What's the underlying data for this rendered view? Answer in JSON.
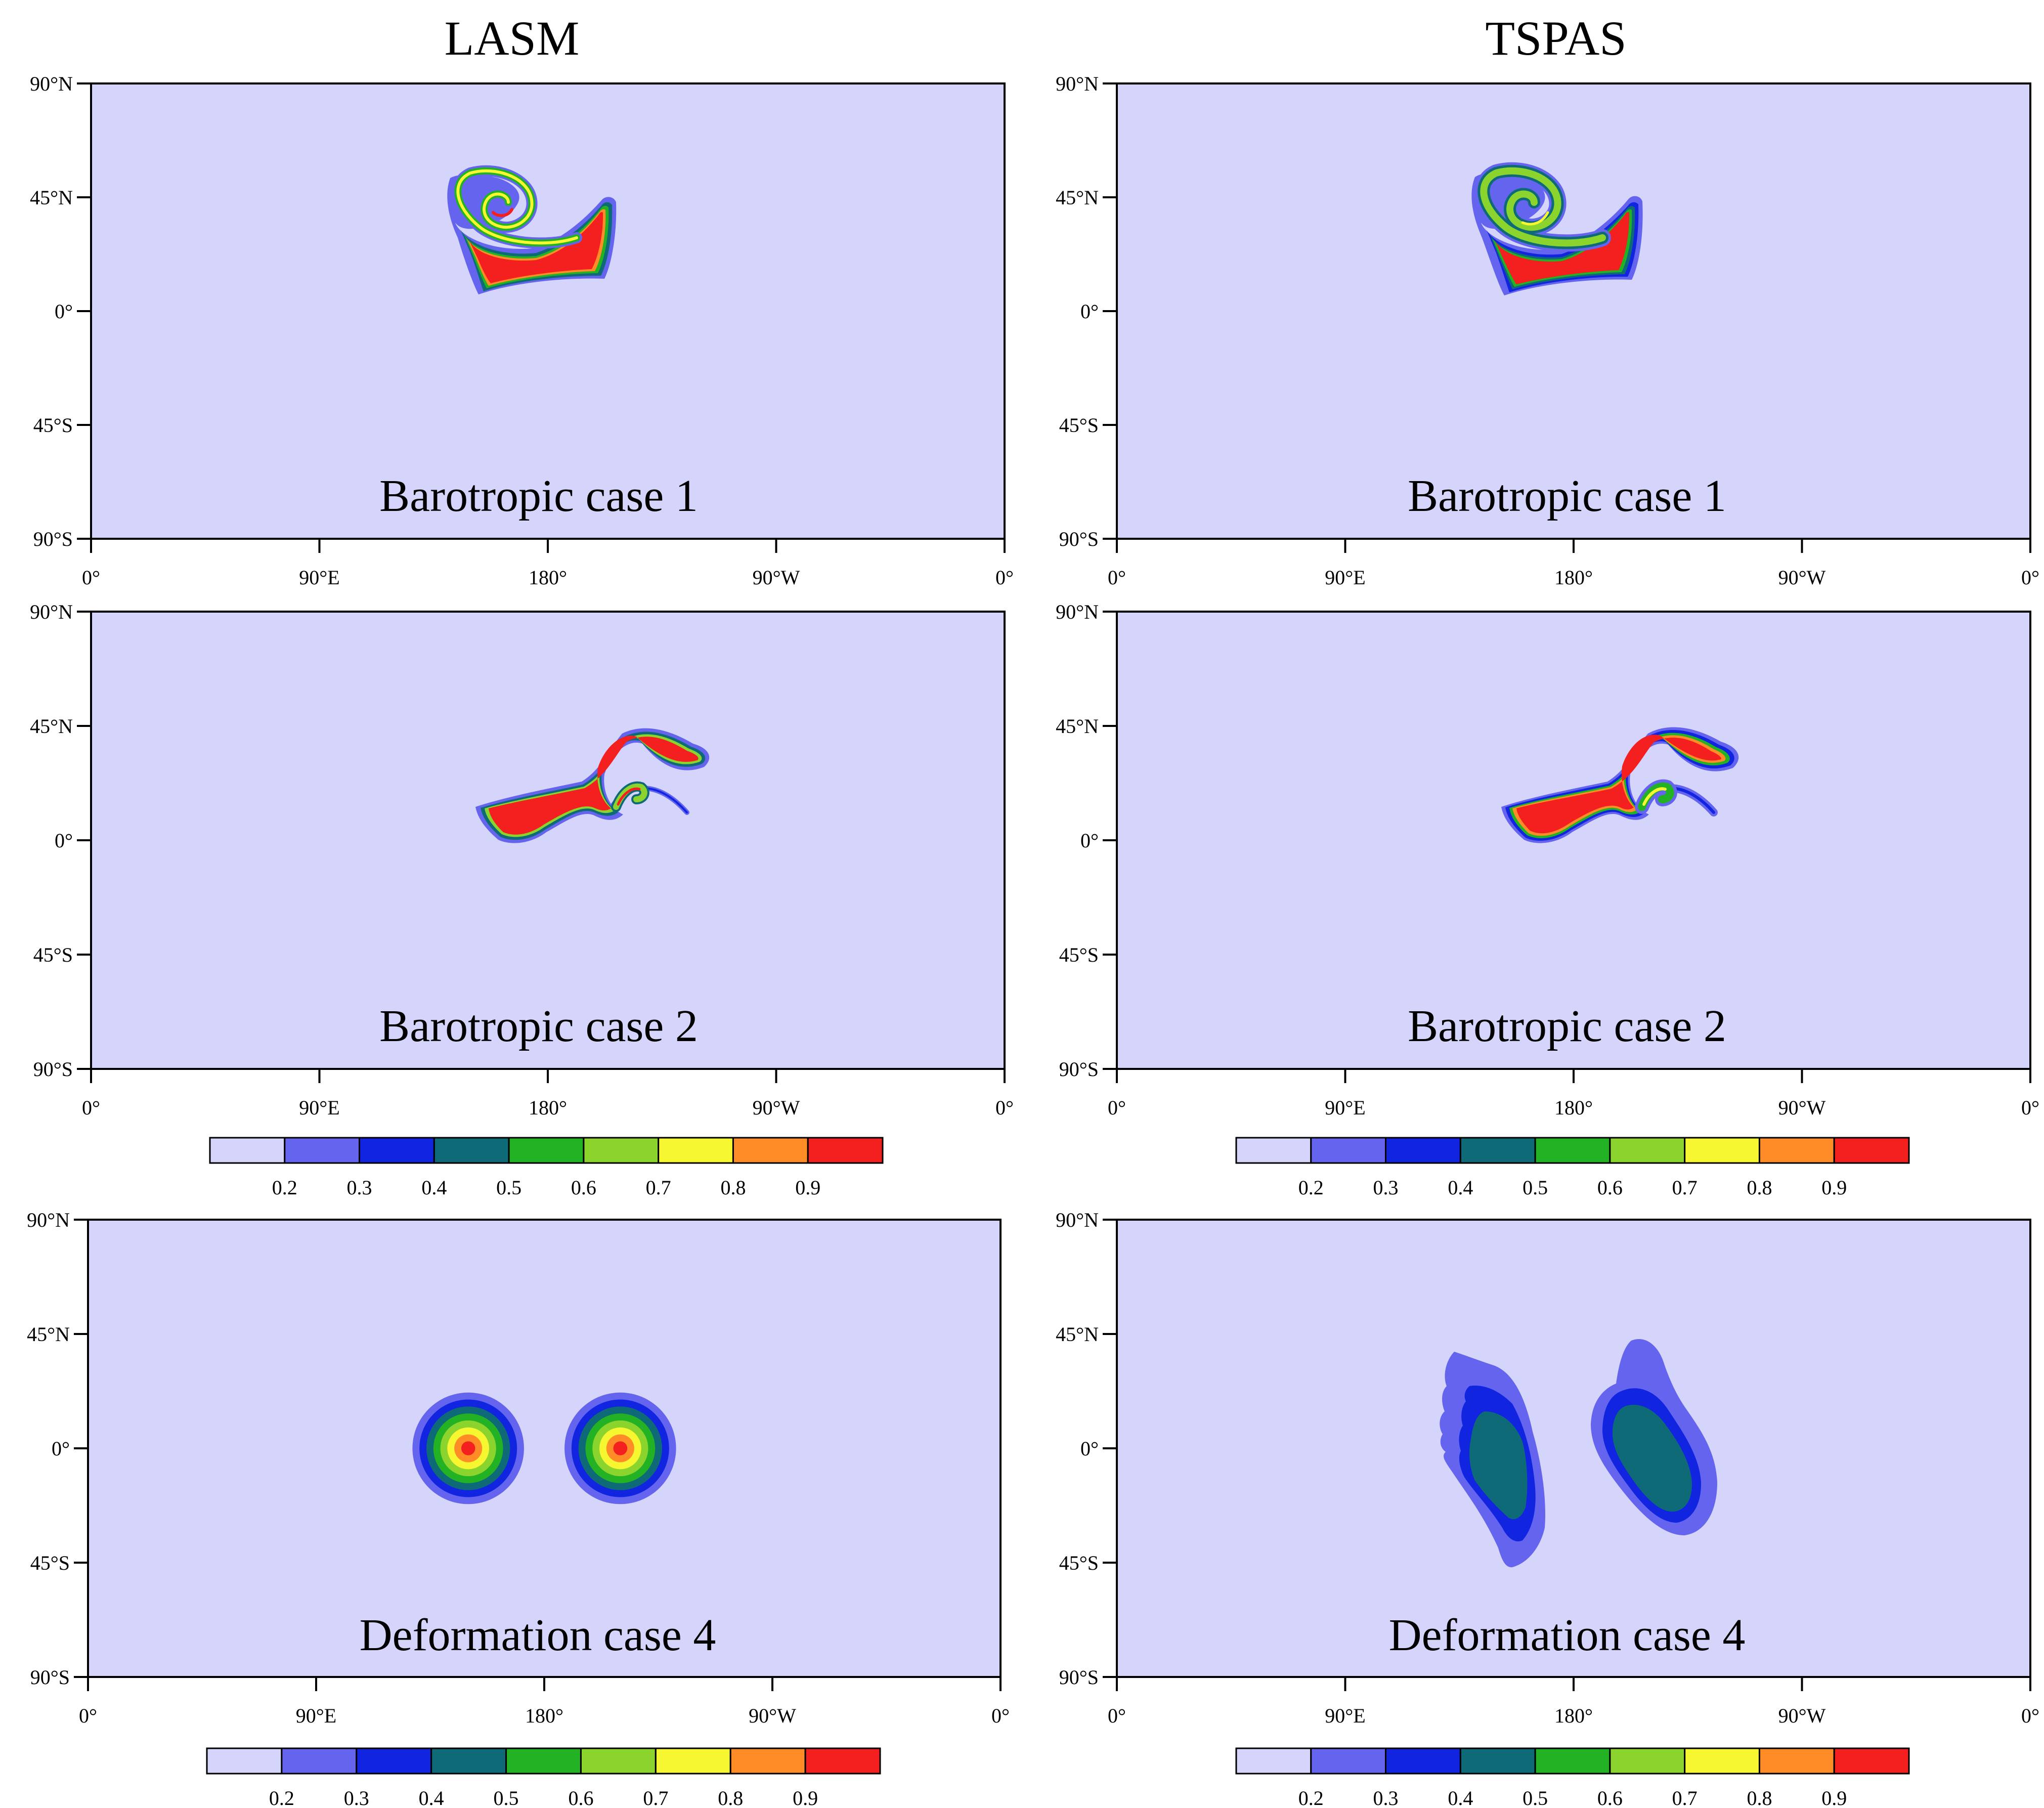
{
  "figure": {
    "columns": [
      "LASM",
      "TSPAS"
    ]
  },
  "palette": [
    "#d5d5fb",
    "#6464ef",
    "#1125e0",
    "#0f6a77",
    "#23b223",
    "#8ad42d",
    "#f6f631",
    "#ff8c26",
    "#f41f1f"
  ],
  "colorbar_ticks": [
    "0.2",
    "0.3",
    "0.4",
    "0.5",
    "0.6",
    "0.7",
    "0.8",
    "0.9"
  ],
  "axes": {
    "lat_ticks": [
      "90°N",
      "45°N",
      "0°",
      "45°S",
      "90°S"
    ],
    "lon_ticks": [
      "0°",
      "90°E",
      "180°",
      "90°W",
      "0°"
    ],
    "lon_range": [
      0,
      360
    ],
    "lat_range": [
      -90,
      90
    ]
  },
  "chart_data": [
    {
      "type": "heatmap",
      "column": "LASM",
      "label": "Barotropic case 1",
      "levels": [
        0.1,
        0.2,
        0.3,
        0.4,
        0.5,
        0.6,
        0.7,
        0.8,
        0.9
      ],
      "background_level": 0.1,
      "features": [
        {
          "shape": "hooked slab",
          "lon": [
            155,
            205
          ],
          "lat": [
            6,
            45
          ],
          "max_level": 0.9
        },
        {
          "shape": "spiral",
          "center": [
            175,
            35
          ],
          "max_level": 0.9
        }
      ]
    },
    {
      "type": "heatmap",
      "column": "TSPAS",
      "label": "Barotropic case 1",
      "levels": [
        0.1,
        0.2,
        0.3,
        0.4,
        0.5,
        0.6,
        0.7,
        0.8,
        0.9
      ],
      "background_level": 0.1,
      "features": [
        {
          "shape": "hooked slab",
          "lon": [
            155,
            205
          ],
          "lat": [
            6,
            45
          ],
          "max_level": 0.9
        },
        {
          "shape": "spiral",
          "center": [
            175,
            35
          ],
          "max_level": 0.7
        }
      ]
    },
    {
      "type": "heatmap",
      "column": "LASM",
      "label": "Barotropic case 2",
      "levels": [
        0.1,
        0.2,
        0.3,
        0.4,
        0.5,
        0.6,
        0.7,
        0.8,
        0.9
      ],
      "background_level": 0.1,
      "features": [
        {
          "shape": "S-shaped filament",
          "lon": [
            153,
            243
          ],
          "lat": [
            -2,
            50
          ],
          "max_level": 0.9
        }
      ]
    },
    {
      "type": "heatmap",
      "column": "TSPAS",
      "label": "Barotropic case 2",
      "levels": [
        0.1,
        0.2,
        0.3,
        0.4,
        0.5,
        0.6,
        0.7,
        0.8,
        0.9
      ],
      "background_level": 0.1,
      "features": [
        {
          "shape": "S-shaped filament",
          "lon": [
            153,
            243
          ],
          "lat": [
            -2,
            50
          ],
          "max_level": 0.9
        }
      ]
    },
    {
      "type": "heatmap",
      "column": "LASM",
      "label": "Deformation case 4",
      "levels": [
        0.1,
        0.2,
        0.3,
        0.4,
        0.5,
        0.6,
        0.7,
        0.8,
        0.9
      ],
      "background_level": 0.1,
      "features": [
        {
          "shape": "cosine bell",
          "center": [
            150,
            0
          ],
          "radius_deg": 22,
          "max_level": 0.9
        },
        {
          "shape": "cosine bell",
          "center": [
            210,
            0
          ],
          "radius_deg": 22,
          "max_level": 0.9
        }
      ]
    },
    {
      "type": "heatmap",
      "column": "TSPAS",
      "label": "Deformation case 4",
      "levels": [
        0.1,
        0.2,
        0.3,
        0.4,
        0.5,
        0.6,
        0.7,
        0.8,
        0.9
      ],
      "background_level": 0.1,
      "features": [
        {
          "shape": "smeared ellipse",
          "lon": [
            128,
            170
          ],
          "lat": [
            -48,
            40
          ],
          "max_level": 0.4
        },
        {
          "shape": "smeared ellipse",
          "lon": [
            188,
            236
          ],
          "lat": [
            -35,
            43
          ],
          "max_level": 0.4
        }
      ]
    }
  ]
}
